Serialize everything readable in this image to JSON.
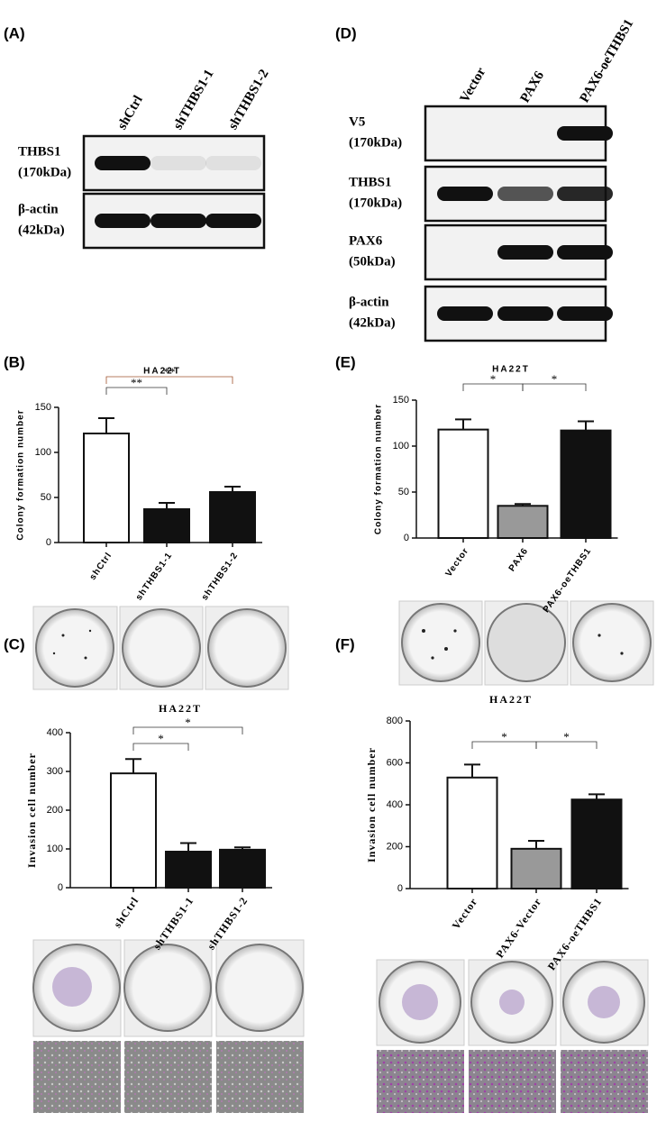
{
  "panel_labels": [
    "(A)",
    "(B)",
    "(C)",
    "(D)",
    "(E)",
    "(F)"
  ],
  "blots": [
    {
      "lanes": [
        "shCtrl",
        "shTHBS1-1",
        "shTHBS1-2"
      ],
      "rows": [
        {
          "name": "THBS1",
          "size": "(170kDa)"
        },
        {
          "name": "β-actin",
          "size": "(42kDa)"
        }
      ]
    },
    {
      "lanes": [
        "Vector",
        "PAX6",
        "PAX6-oeTHBS1"
      ],
      "rows": [
        {
          "name": "V5",
          "size": "(170kDa)"
        },
        {
          "name": "THBS1",
          "size": "(170kDa)"
        },
        {
          "name": "PAX6",
          "size": "(50kDa)"
        },
        {
          "name": "β-actin",
          "size": "(42kDa)"
        }
      ]
    }
  ],
  "chart_data": [
    {
      "type": "bar",
      "title": "HA22T",
      "y_label": "Colony formation number",
      "categories": [
        "shCtrl",
        "shTHBS1-1",
        "shTHBS1-2"
      ],
      "values": [
        121,
        37,
        56
      ],
      "errors": [
        17,
        7,
        6
      ],
      "colors": [
        "#ffffff",
        "#111111",
        "#111111"
      ],
      "ylim": [
        0,
        150
      ],
      "yticks": [
        0,
        50,
        100,
        150
      ],
      "annotations": [
        "**",
        "**"
      ]
    },
    {
      "type": "bar",
      "title": "HA22T",
      "y_label": "Invasion cell number",
      "categories": [
        "shCtrl",
        "shTHBS1-1",
        "shTHBS1-2"
      ],
      "values": [
        295,
        93,
        98
      ],
      "errors": [
        37,
        22,
        6
      ],
      "colors": [
        "#ffffff",
        "#111111",
        "#111111"
      ],
      "ylim": [
        0,
        400
      ],
      "yticks": [
        0,
        100,
        200,
        300,
        400
      ],
      "annotations": [
        "*",
        "*"
      ]
    },
    {
      "type": "bar",
      "title": "HA22T",
      "y_label": "Colony formation number",
      "categories": [
        "Vector",
        "PAX6",
        "PAX6-oeTHBS1"
      ],
      "values": [
        118,
        35,
        117
      ],
      "errors": [
        11,
        2,
        10
      ],
      "colors": [
        "#ffffff",
        "#999999",
        "#111111"
      ],
      "ylim": [
        0,
        150
      ],
      "yticks": [
        0,
        50,
        100,
        150
      ],
      "annotations": [
        "*",
        "*"
      ]
    },
    {
      "type": "bar",
      "title": "HA22T",
      "y_label": "Invasion cell number",
      "categories": [
        "Vector",
        "PAX6-Vector",
        "PAX6-oeTHBS1"
      ],
      "values": [
        530,
        190,
        425
      ],
      "errors": [
        62,
        38,
        25
      ],
      "colors": [
        "#ffffff",
        "#999999",
        "#111111"
      ],
      "ylim": [
        0,
        800
      ],
      "yticks": [
        0,
        200,
        400,
        600,
        800
      ],
      "annotations": [
        "*",
        "*"
      ]
    }
  ]
}
